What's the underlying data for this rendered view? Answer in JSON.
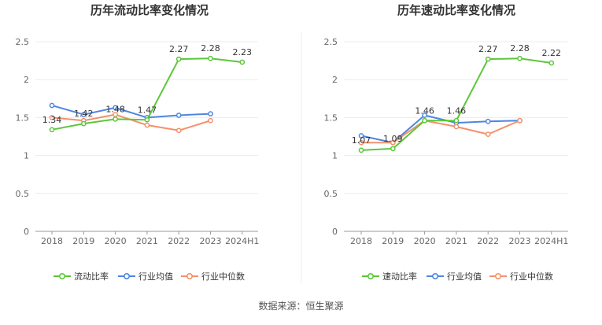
{
  "chart_data": [
    {
      "type": "line",
      "title": "历年流动比率变化情况",
      "categories": [
        "2018",
        "2019",
        "2020",
        "2021",
        "2022",
        "2023",
        "2024H1"
      ],
      "ylim": [
        0,
        2.5
      ],
      "yticks": [
        "0",
        "0.5",
        "1",
        "1.5",
        "2",
        "2.5"
      ],
      "grid": true,
      "legend_position": "bottom",
      "series": [
        {
          "name": "流动比率",
          "color": "#5cc73a",
          "values": [
            1.34,
            1.42,
            1.48,
            1.47,
            2.27,
            2.28,
            2.23
          ],
          "labels": [
            "1.34",
            "1.42",
            "1.48",
            "1.47",
            "2.27",
            "2.28",
            "2.23"
          ]
        },
        {
          "name": "行业均值",
          "color": "#4f86e0",
          "values": [
            1.66,
            1.54,
            1.63,
            1.5,
            1.53,
            1.55,
            null
          ]
        },
        {
          "name": "行业中位数",
          "color": "#f4916b",
          "values": [
            1.5,
            1.46,
            1.54,
            1.4,
            1.33,
            1.46,
            null
          ]
        }
      ]
    },
    {
      "type": "line",
      "title": "历年速动比率变化情况",
      "categories": [
        "2018",
        "2019",
        "2020",
        "2021",
        "2022",
        "2023",
        "2024H1"
      ],
      "ylim": [
        0,
        2.5
      ],
      "yticks": [
        "0",
        "0.5",
        "1",
        "1.5",
        "2",
        "2.5"
      ],
      "grid": true,
      "legend_position": "bottom",
      "series": [
        {
          "name": "速动比率",
          "color": "#5cc73a",
          "values": [
            1.07,
            1.09,
            1.46,
            1.46,
            2.27,
            2.28,
            2.22
          ],
          "labels": [
            "1.07",
            "1.09",
            "1.46",
            "1.46",
            "2.27",
            "2.28",
            "2.22"
          ]
        },
        {
          "name": "行业均值",
          "color": "#4f86e0",
          "values": [
            1.26,
            1.17,
            1.53,
            1.43,
            1.45,
            1.46,
            null
          ]
        },
        {
          "name": "行业中位数",
          "color": "#f4916b",
          "values": [
            1.17,
            1.17,
            1.46,
            1.38,
            1.28,
            1.46,
            null
          ]
        }
      ]
    }
  ],
  "footer": {
    "source": "数据来源：恒生聚源"
  }
}
